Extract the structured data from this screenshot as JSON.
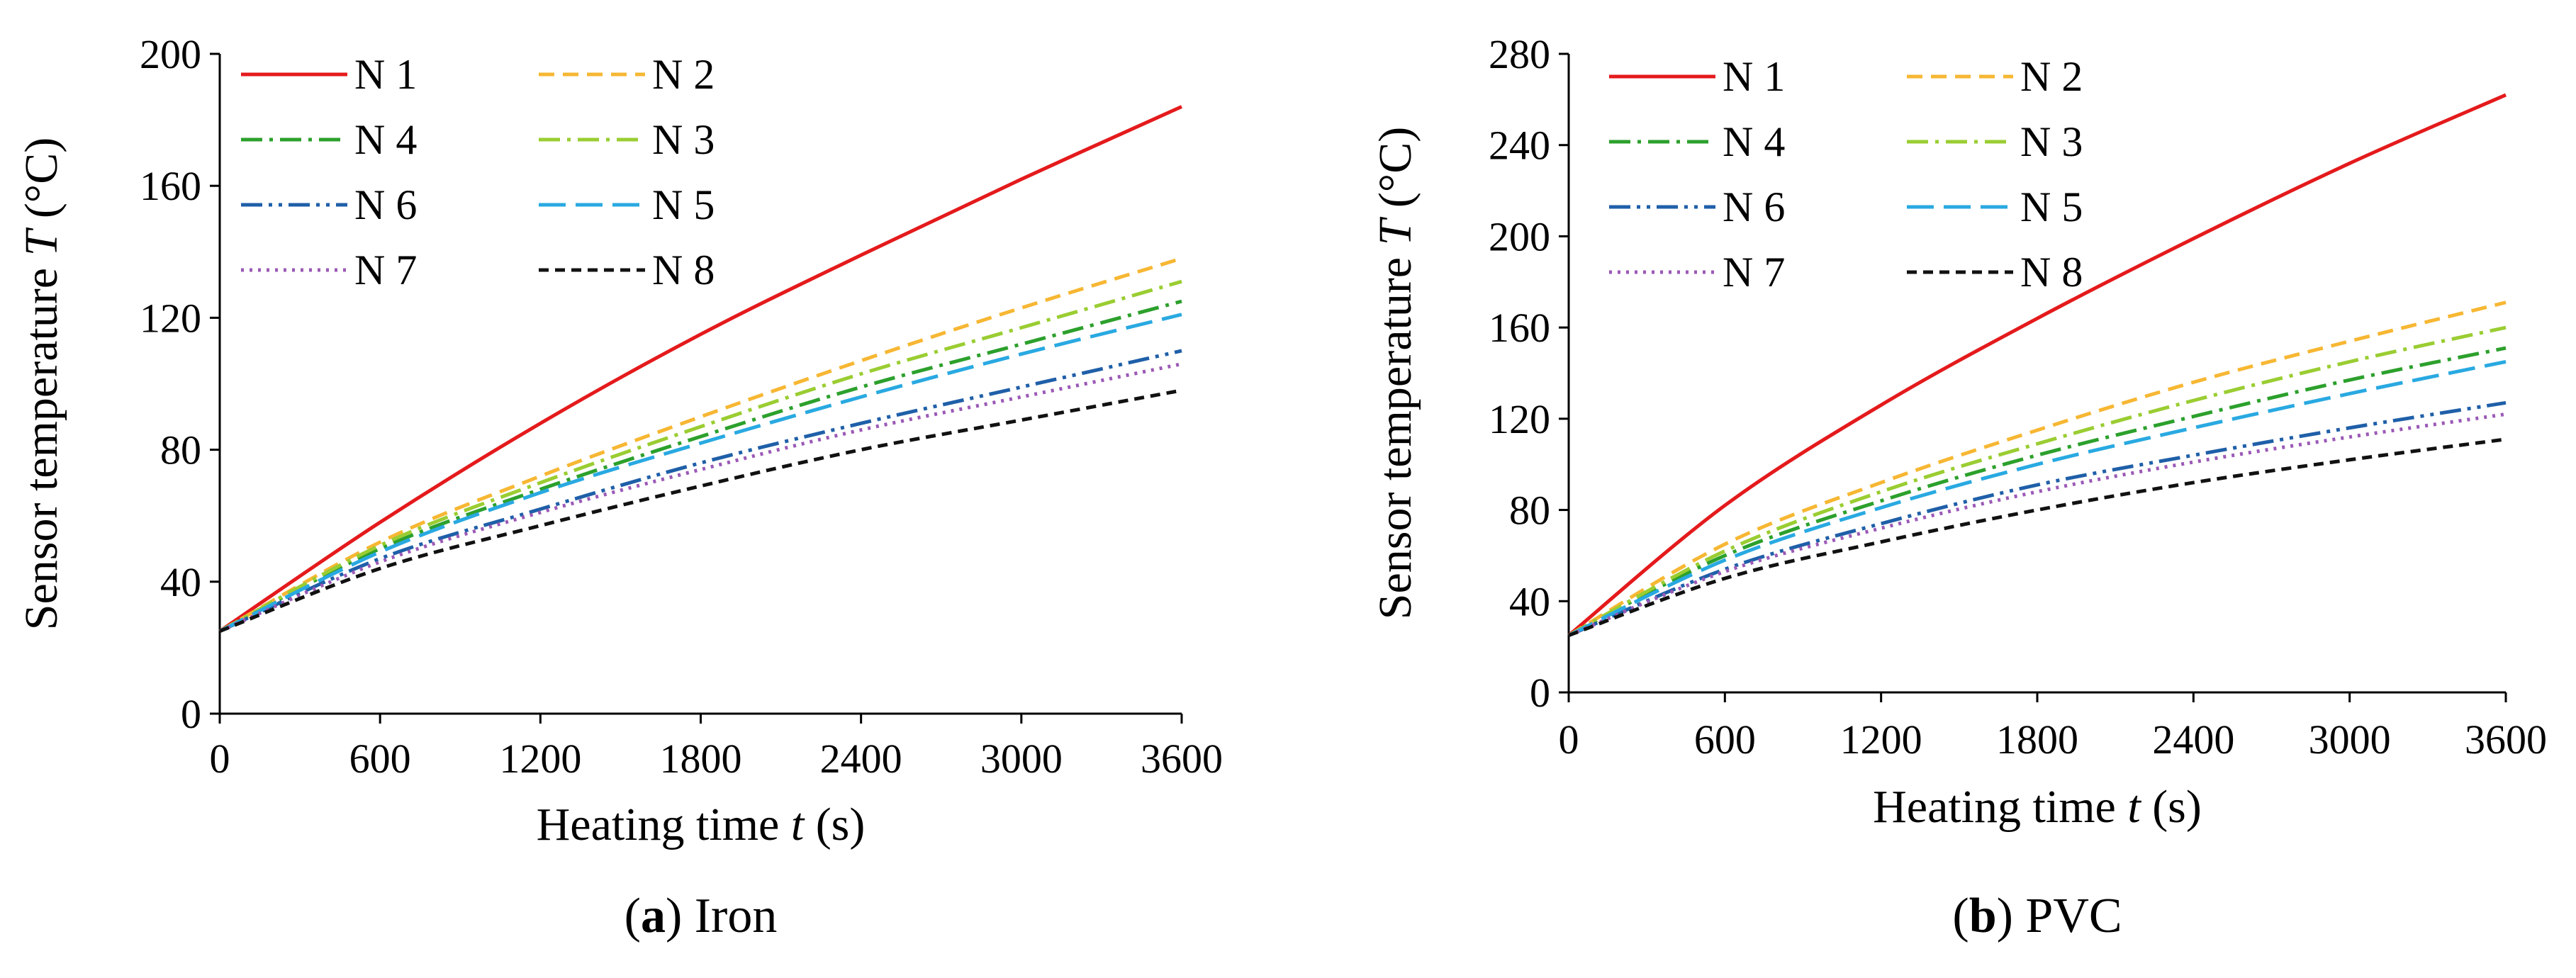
{
  "chart_data": [
    {
      "type": "line",
      "panel_letter": "a",
      "panel_name": "Iron",
      "xlabel": {
        "prefix": "Heating time ",
        "var": "t",
        "suffix": " (s)"
      },
      "ylabel": {
        "prefix": "Sensor temperature ",
        "var": "T",
        "suffix": " (°C)"
      },
      "xlim": [
        0,
        3600
      ],
      "ylim": [
        0,
        200
      ],
      "xticks": [
        0,
        600,
        1200,
        1800,
        2400,
        3000,
        3600
      ],
      "yticks": [
        0,
        40,
        80,
        120,
        160,
        200
      ],
      "grid": false,
      "legend_position": "top-left",
      "x": [
        0,
        600,
        1200,
        1800,
        2400,
        3000,
        3600
      ],
      "series": [
        {
          "name": "N 1",
          "color": "#e41a1c",
          "dash": "solid",
          "values": [
            25,
            58,
            88,
            115,
            139,
            162,
            184
          ]
        },
        {
          "name": "N 2",
          "color": "#f7b733",
          "dash": "dash",
          "values": [
            25,
            52,
            72,
            90,
            107,
            123,
            138
          ]
        },
        {
          "name": "N 4",
          "color": "#2ca02c",
          "dash": "dashdot",
          "values": [
            25,
            50,
            68,
            84,
            99,
            112,
            125
          ]
        },
        {
          "name": "N 3",
          "color": "#9acd32",
          "dash": "dashdot",
          "values": [
            25,
            51,
            70,
            87,
            103,
            117,
            131
          ]
        },
        {
          "name": "N 6",
          "color": "#1f5fa8",
          "dash": "dashdotdot",
          "values": [
            25,
            47,
            62,
            76,
            88,
            99,
            110
          ]
        },
        {
          "name": "N 5",
          "color": "#29a9e1",
          "dash": "longdash",
          "values": [
            25,
            49,
            67,
            82,
            96,
            109,
            121
          ]
        },
        {
          "name": "N 7",
          "color": "#9b59b6",
          "dash": "dot",
          "values": [
            25,
            46,
            61,
            74,
            86,
            96,
            106
          ]
        },
        {
          "name": "N 8",
          "color": "#111111",
          "dash": "shortdash",
          "values": [
            25,
            44,
            57,
            69,
            80,
            89,
            98
          ]
        }
      ]
    },
    {
      "type": "line",
      "panel_letter": "b",
      "panel_name": "PVC",
      "xlabel": {
        "prefix": "Heating time ",
        "var": "t",
        "suffix": " (s)"
      },
      "ylabel": {
        "prefix": "Sensor temperature ",
        "var": "T",
        "suffix": " (°C)"
      },
      "xlim": [
        0,
        3600
      ],
      "ylim": [
        0,
        280
      ],
      "xticks": [
        0,
        600,
        1200,
        1800,
        2400,
        3000,
        3600
      ],
      "yticks": [
        0,
        40,
        80,
        120,
        160,
        200,
        240,
        280
      ],
      "grid": false,
      "legend_position": "top-left",
      "x": [
        0,
        600,
        1200,
        1800,
        2400,
        3000,
        3600
      ],
      "series": [
        {
          "name": "N 1",
          "color": "#e41a1c",
          "dash": "solid",
          "values": [
            25,
            82,
            126,
            164,
            199,
            232,
            262
          ]
        },
        {
          "name": "N 2",
          "color": "#f7b733",
          "dash": "dash",
          "values": [
            25,
            65,
            92,
            115,
            136,
            154,
            171
          ]
        },
        {
          "name": "N 4",
          "color": "#2ca02c",
          "dash": "dashdot",
          "values": [
            25,
            60,
            84,
            104,
            121,
            137,
            151
          ]
        },
        {
          "name": "N 3",
          "color": "#9acd32",
          "dash": "dashdot",
          "values": [
            25,
            62,
            88,
            109,
            128,
            145,
            160
          ]
        },
        {
          "name": "N 6",
          "color": "#1f5fa8",
          "dash": "dashdotdot",
          "values": [
            25,
            54,
            74,
            91,
            104,
            116,
            127
          ]
        },
        {
          "name": "N 5",
          "color": "#29a9e1",
          "dash": "longdash",
          "values": [
            25,
            58,
            81,
            100,
            116,
            131,
            145
          ]
        },
        {
          "name": "N 7",
          "color": "#9b59b6",
          "dash": "dot",
          "values": [
            25,
            53,
            72,
            88,
            101,
            112,
            122
          ]
        },
        {
          "name": "N 8",
          "color": "#111111",
          "dash": "shortdash",
          "values": [
            25,
            50,
            66,
            80,
            92,
            102,
            111
          ]
        }
      ]
    }
  ]
}
